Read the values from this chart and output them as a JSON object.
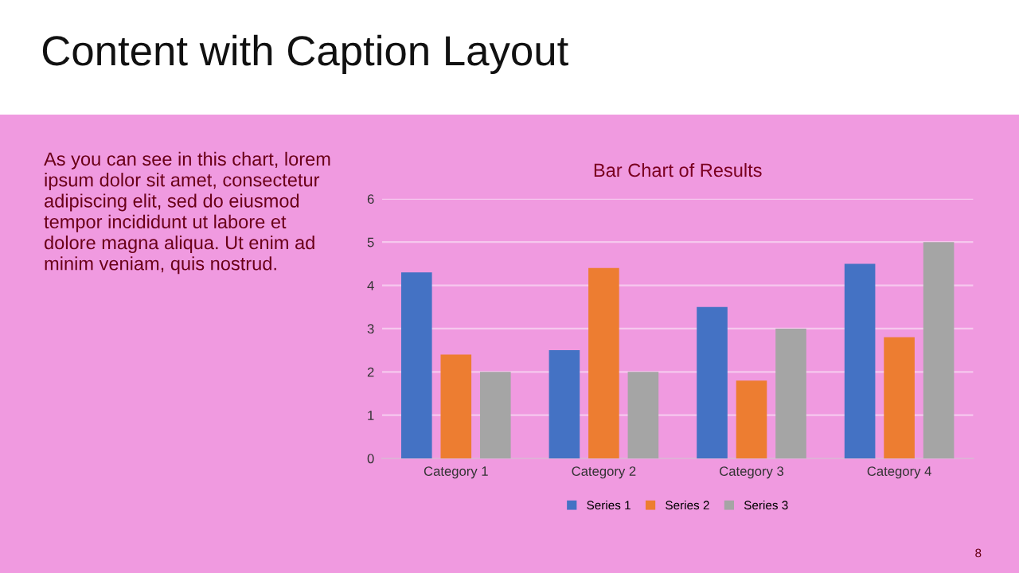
{
  "chart_data": {
    "type": "bar",
    "title": "Content with Caption Layout",
    "subtitle": "Bar Chart of Results",
    "annotations": [
      "As you can see in this chart, lorem\nipsum dolor sit amet, consectetur\nadipiscing elit, sed do eiusmod\ntempor incididunt ut labore et\ndolore magna aliqua. Ut enim ad\nminim veniam, quis nostrud.",
      "8"
    ],
    "categories": [
      "Category 1",
      "Category 2",
      "Category 3",
      "Category 4"
    ],
    "series": [
      {
        "name": "Series 1",
        "color": "#4472c4",
        "values": [
          4.3,
          2.5,
          3.5,
          4.5
        ]
      },
      {
        "name": "Series 2",
        "color": "#ed7d31",
        "values": [
          2.4,
          4.4,
          1.8,
          2.8
        ]
      },
      {
        "name": "Series 3",
        "color": "#a5a5a5",
        "values": [
          2,
          2,
          3,
          5
        ]
      }
    ],
    "ylim": [
      0,
      6
    ],
    "yticks": [
      0,
      1,
      2,
      3,
      4,
      5,
      6
    ],
    "grid": "y",
    "legend": "bottom"
  }
}
